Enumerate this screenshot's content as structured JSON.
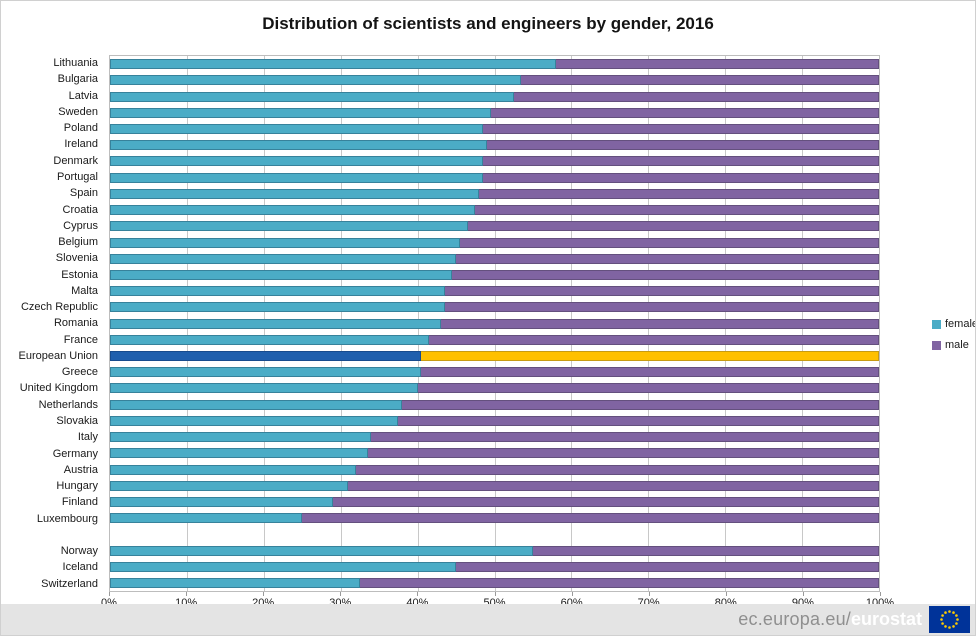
{
  "title": "Distribution of scientists and engineers by gender, 2016",
  "legend": [
    {
      "label": "female",
      "color": "#4bacc6"
    },
    {
      "label": "male",
      "color": "#8064a2"
    }
  ],
  "footer": {
    "url_prefix": "ec.europa.eu/",
    "url_brand": "eurostat",
    "flag_color": "#003399",
    "star_color": "#ffcc00"
  },
  "chart_data": {
    "type": "bar",
    "orientation": "horizontal",
    "stacked": true,
    "title": "Distribution of scientists and engineers by gender, 2016",
    "xlabel": "",
    "ylabel": "",
    "unit": "%",
    "xlim": [
      0,
      100
    ],
    "grid": true,
    "legend_position": "right",
    "x_ticks": [
      "0%",
      "10%",
      "20%",
      "30%",
      "40%",
      "50%",
      "60%",
      "70%",
      "80%",
      "90%",
      "100%"
    ],
    "series_names": [
      "female",
      "male"
    ],
    "colors": {
      "female": "#4bacc6",
      "male": "#8064a2",
      "female_highlight": "#1f5fad",
      "male_highlight": "#ffc000"
    },
    "rows": [
      {
        "label": "Lithuania",
        "female": 58.0,
        "male": 42.0
      },
      {
        "label": "Bulgaria",
        "female": 53.5,
        "male": 46.5
      },
      {
        "label": "Latvia",
        "female": 52.5,
        "male": 47.5
      },
      {
        "label": "Sweden",
        "female": 49.5,
        "male": 50.5
      },
      {
        "label": "Poland",
        "female": 48.5,
        "male": 51.5
      },
      {
        "label": "Ireland",
        "female": 49.0,
        "male": 51.0
      },
      {
        "label": "Denmark",
        "female": 48.5,
        "male": 51.5
      },
      {
        "label": "Portugal",
        "female": 48.5,
        "male": 51.5
      },
      {
        "label": "Spain",
        "female": 48.0,
        "male": 52.0
      },
      {
        "label": "Croatia",
        "female": 47.5,
        "male": 52.5
      },
      {
        "label": "Cyprus",
        "female": 46.5,
        "male": 53.5
      },
      {
        "label": "Belgium",
        "female": 45.5,
        "male": 54.5
      },
      {
        "label": "Slovenia",
        "female": 45.0,
        "male": 55.0
      },
      {
        "label": "Estonia",
        "female": 44.5,
        "male": 55.5
      },
      {
        "label": "Malta",
        "female": 43.5,
        "male": 56.5
      },
      {
        "label": "Czech Republic",
        "female": 43.5,
        "male": 56.5
      },
      {
        "label": "Romania",
        "female": 43.0,
        "male": 57.0
      },
      {
        "label": "France",
        "female": 41.5,
        "male": 58.5
      },
      {
        "label": "European Union",
        "female": 40.5,
        "male": 59.5,
        "highlight": true
      },
      {
        "label": "Greece",
        "female": 40.5,
        "male": 59.5
      },
      {
        "label": "United Kingdom",
        "female": 40.0,
        "male": 60.0
      },
      {
        "label": "Netherlands",
        "female": 38.0,
        "male": 62.0
      },
      {
        "label": "Slovakia",
        "female": 37.5,
        "male": 62.5
      },
      {
        "label": "Italy",
        "female": 34.0,
        "male": 66.0
      },
      {
        "label": "Germany",
        "female": 33.5,
        "male": 66.5
      },
      {
        "label": "Austria",
        "female": 32.0,
        "male": 68.0
      },
      {
        "label": "Hungary",
        "female": 31.0,
        "male": 69.0
      },
      {
        "label": "Finland",
        "female": 29.0,
        "male": 71.0
      },
      {
        "label": "Luxembourg",
        "female": 25.0,
        "male": 75.0
      },
      {
        "label": "",
        "spacer": true
      },
      {
        "label": "Norway",
        "female": 55.0,
        "male": 45.0
      },
      {
        "label": "Iceland",
        "female": 45.0,
        "male": 55.0
      },
      {
        "label": "Switzerland",
        "female": 32.5,
        "male": 67.5
      }
    ]
  }
}
